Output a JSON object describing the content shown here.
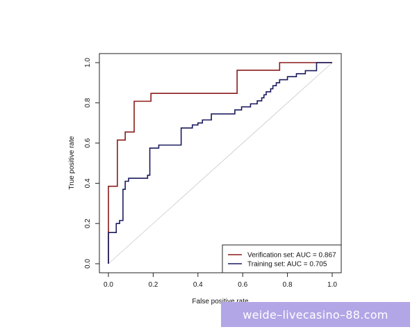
{
  "chart_data": {
    "type": "line",
    "title": "",
    "xlabel": "False positive rate",
    "ylabel": "True positive rate",
    "xlim": [
      0,
      1
    ],
    "ylim": [
      0,
      1
    ],
    "xticks": [
      "0.0",
      "0.2",
      "0.4",
      "0.6",
      "0.8",
      "1.0"
    ],
    "yticks": [
      "0.0",
      "0.2",
      "0.4",
      "0.6",
      "0.8",
      "1.0"
    ],
    "grid": false,
    "legend_position": "bottom-right",
    "diagonal": {
      "name": "reference",
      "color": "#c8c8c8"
    },
    "series": [
      {
        "name": "Verification set: AUC = 0.867",
        "color": "#8b1a1a",
        "x": [
          0,
          0,
          0.04,
          0.04,
          0.075,
          0.075,
          0.115,
          0.115,
          0.19,
          0.19,
          0.575,
          0.575,
          0.765,
          0.765,
          1.0
        ],
        "y": [
          0,
          0.385,
          0.385,
          0.615,
          0.615,
          0.655,
          0.655,
          0.808,
          0.808,
          0.847,
          0.847,
          0.962,
          0.962,
          1.0,
          1.0
        ]
      },
      {
        "name": "Training set: AUC = 0.705",
        "color": "#1a1a5e",
        "x": [
          0,
          0,
          0.035,
          0.035,
          0.05,
          0.05,
          0.065,
          0.065,
          0.075,
          0.075,
          0.09,
          0.09,
          0.175,
          0.175,
          0.185,
          0.185,
          0.225,
          0.225,
          0.325,
          0.325,
          0.375,
          0.375,
          0.4,
          0.4,
          0.42,
          0.42,
          0.46,
          0.46,
          0.565,
          0.565,
          0.595,
          0.595,
          0.635,
          0.635,
          0.665,
          0.665,
          0.685,
          0.685,
          0.695,
          0.695,
          0.705,
          0.705,
          0.725,
          0.725,
          0.735,
          0.735,
          0.75,
          0.75,
          0.765,
          0.765,
          0.8,
          0.8,
          0.84,
          0.84,
          0.88,
          0.88,
          0.93,
          0.93,
          1.0
        ],
        "y": [
          0,
          0.155,
          0.155,
          0.2,
          0.2,
          0.215,
          0.215,
          0.37,
          0.37,
          0.41,
          0.41,
          0.425,
          0.425,
          0.44,
          0.44,
          0.575,
          0.575,
          0.59,
          0.59,
          0.675,
          0.675,
          0.69,
          0.69,
          0.7,
          0.7,
          0.715,
          0.715,
          0.745,
          0.745,
          0.765,
          0.765,
          0.78,
          0.78,
          0.795,
          0.795,
          0.81,
          0.81,
          0.825,
          0.825,
          0.84,
          0.84,
          0.855,
          0.855,
          0.87,
          0.87,
          0.885,
          0.885,
          0.9,
          0.9,
          0.915,
          0.915,
          0.93,
          0.93,
          0.945,
          0.945,
          0.96,
          0.96,
          1.0,
          1.0
        ]
      }
    ]
  },
  "watermark": {
    "text": "weide–livecasino–88.com",
    "background": "#b3a6e6"
  }
}
